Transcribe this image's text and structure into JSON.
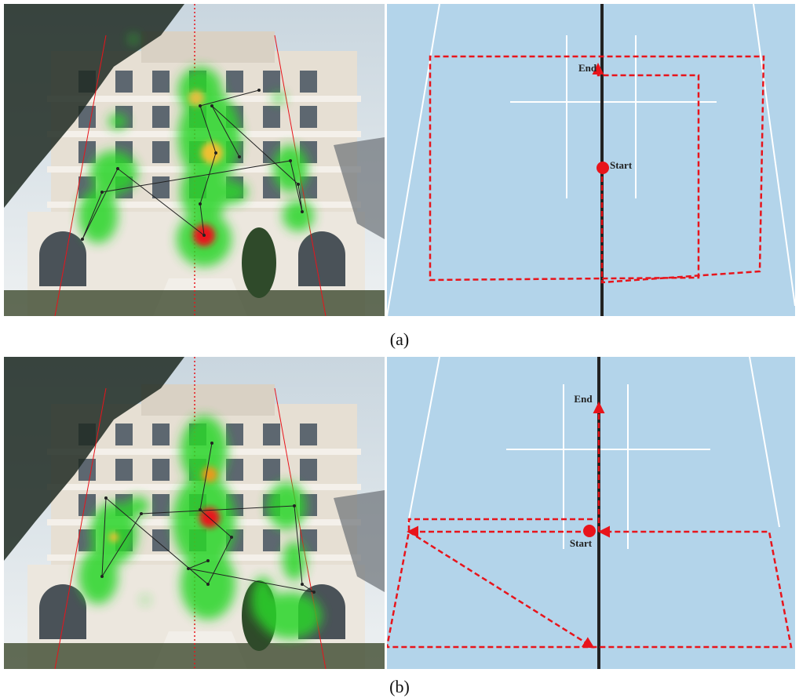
{
  "panels": [
    {
      "label": "(a)",
      "end": "End",
      "start": "Start"
    },
    {
      "label": "(b)",
      "end": "End",
      "start": "Start"
    }
  ]
}
